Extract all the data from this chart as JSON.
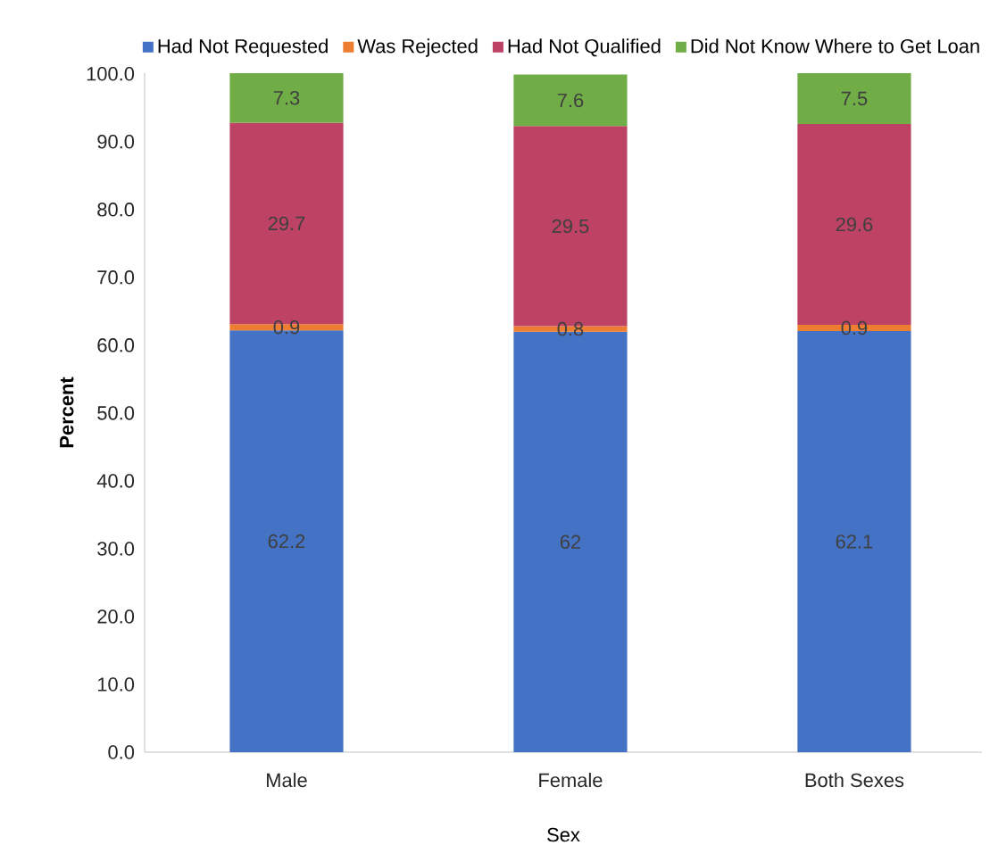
{
  "chart_data": {
    "type": "bar",
    "stacked": true,
    "data_labels": true,
    "legend": "top",
    "xlabel": "Sex",
    "ylabel": "Percent",
    "categories": [
      "Male",
      "Female",
      "Both Sexes"
    ],
    "series": [
      {
        "name": "Had Not Requested",
        "color": "#4472c4",
        "values": [
          62.2,
          62,
          62.1
        ]
      },
      {
        "name": "Was Rejected",
        "color": "#ed7d31",
        "values": [
          0.9,
          0.8,
          0.9
        ]
      },
      {
        "name": "Had Not Qualified",
        "color": "#be4264",
        "values": [
          29.7,
          29.5,
          29.6
        ]
      },
      {
        "name": "Did Not Know Where to Get Loan",
        "color": "#70ad47",
        "values": [
          7.3,
          7.6,
          7.5
        ]
      }
    ],
    "ylim": [
      0,
      100.1
    ],
    "yticks": [
      {
        "value": 0,
        "label": "0.0"
      },
      {
        "value": 10,
        "label": "10.0"
      },
      {
        "value": 20,
        "label": "20.0"
      },
      {
        "value": 30,
        "label": "30.0"
      },
      {
        "value": 40,
        "label": "40.0"
      },
      {
        "value": 50,
        "label": "50.0"
      },
      {
        "value": 60,
        "label": "60.0"
      },
      {
        "value": 70,
        "label": "70.0"
      },
      {
        "value": 80,
        "label": "80.0"
      },
      {
        "value": 90,
        "label": "90.0"
      },
      {
        "value": 100,
        "label": "100.0"
      }
    ]
  }
}
